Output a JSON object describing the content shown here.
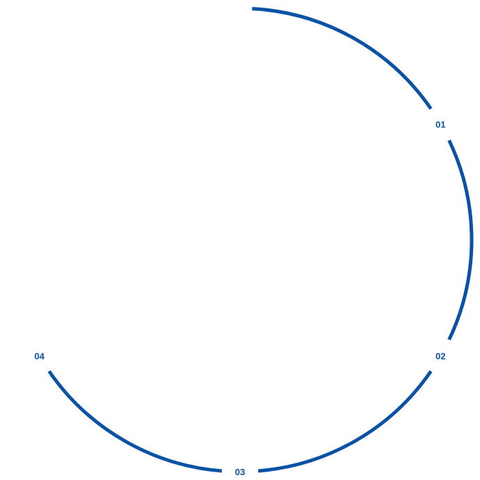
{
  "diagram": {
    "color": "#0a52a5",
    "arc_start_deg": 3,
    "arc_end_deg": 240,
    "steps": [
      {
        "label": "01",
        "angle_deg": 60
      },
      {
        "label": "02",
        "angle_deg": 120
      },
      {
        "label": "03",
        "angle_deg": 180
      },
      {
        "label": "04",
        "angle_deg": 240
      }
    ]
  }
}
